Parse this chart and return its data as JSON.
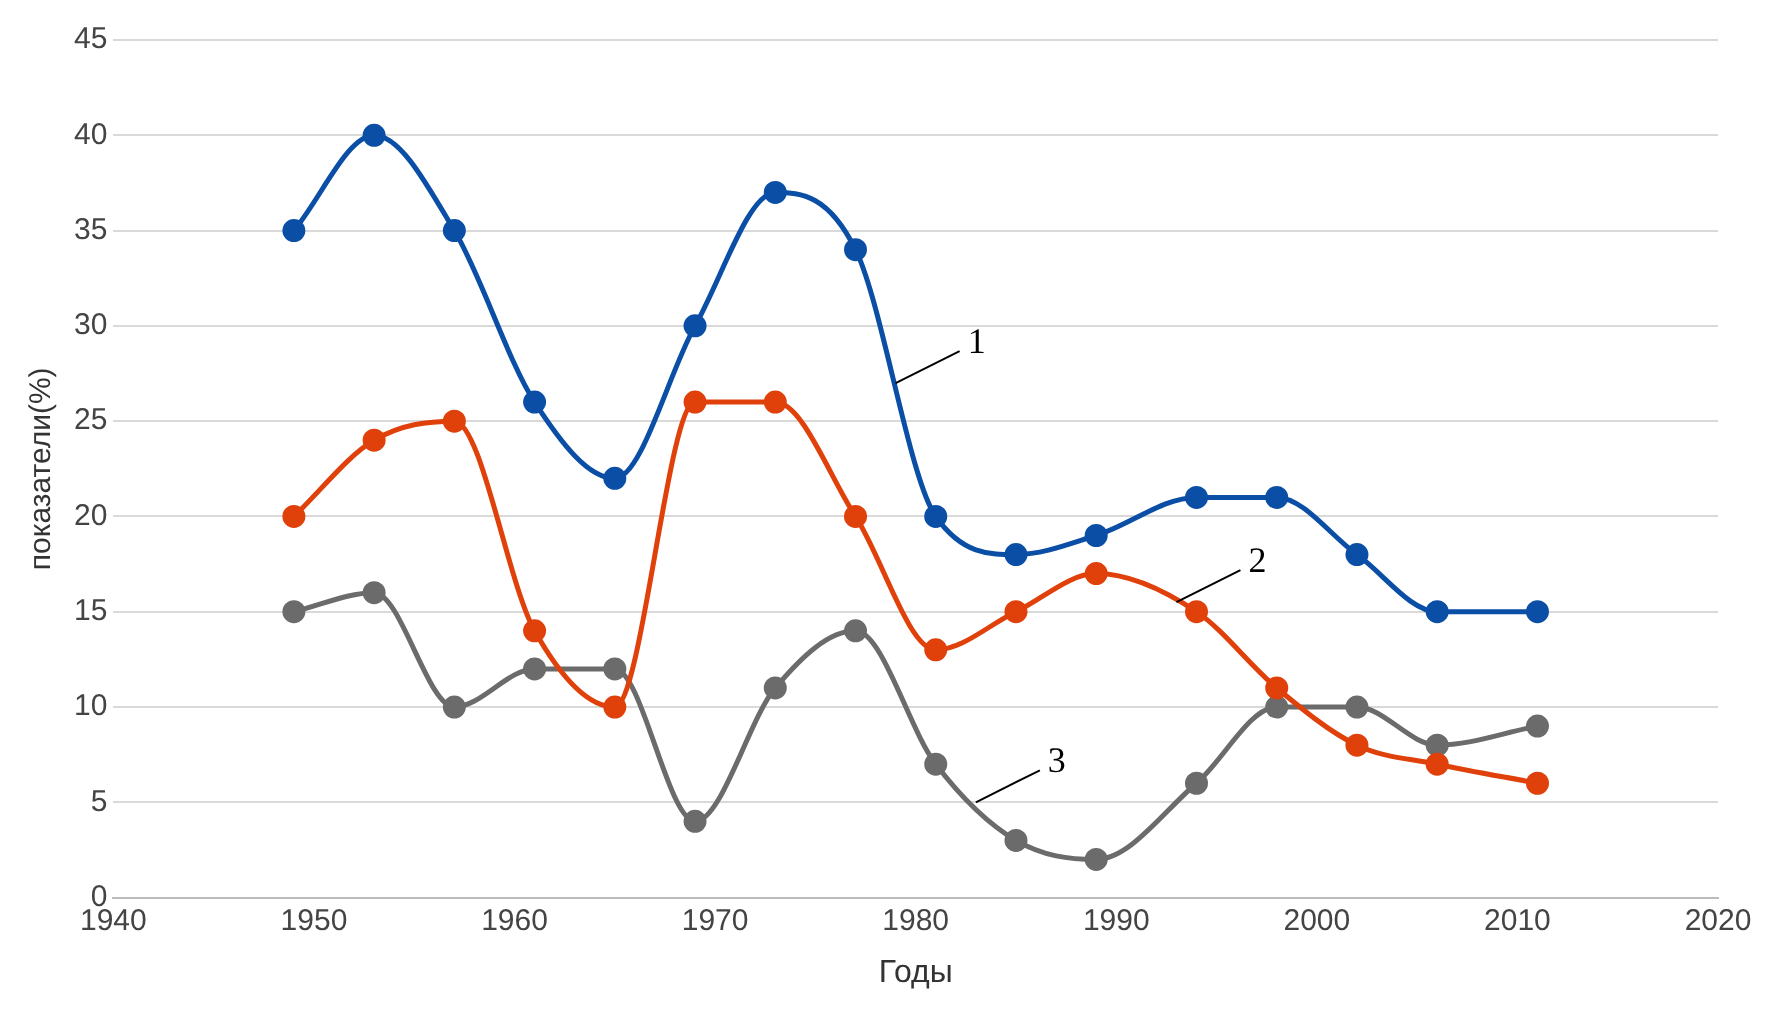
{
  "chart_data": {
    "type": "line",
    "xlabel": "Годы",
    "ylabel": "показатели(%)",
    "x": [
      1949,
      1953,
      1957,
      1961,
      1965,
      1969,
      1973,
      1977,
      1981,
      1985,
      1989,
      1994,
      1998,
      2002,
      2006,
      2011
    ],
    "series": [
      {
        "color": "#0a4ea6",
        "values": [
          35,
          40,
          35,
          26,
          22,
          30,
          37,
          34,
          20,
          18,
          19,
          21,
          21,
          18,
          15,
          15
        ]
      },
      {
        "color": "#e0400a",
        "values": [
          20,
          24,
          25,
          14,
          10,
          26,
          26,
          20,
          13,
          15,
          17,
          15,
          11,
          8,
          7,
          6
        ]
      },
      {
        "color": "#6b6b6b",
        "values": [
          15,
          16,
          10,
          12,
          12,
          4,
          11,
          14,
          7,
          3,
          2,
          6,
          10,
          10,
          8,
          9
        ]
      }
    ],
    "xlim": [
      1940,
      2020
    ],
    "xticks": [
      1940,
      1950,
      1960,
      1970,
      1980,
      1990,
      2000,
      2010,
      2020
    ],
    "ylim": [
      0,
      45
    ],
    "yticks": [
      0,
      5,
      10,
      15,
      20,
      25,
      30,
      35,
      40,
      45
    ],
    "grid": "y",
    "legend": false,
    "marker": "circle",
    "line_style": "solid",
    "annotations": [
      {
        "text": "1",
        "x": 1979,
        "y": 27
      },
      {
        "text": "2",
        "x": 1993,
        "y": 15.5
      },
      {
        "text": "3",
        "x": 1983,
        "y": 5
      }
    ]
  }
}
